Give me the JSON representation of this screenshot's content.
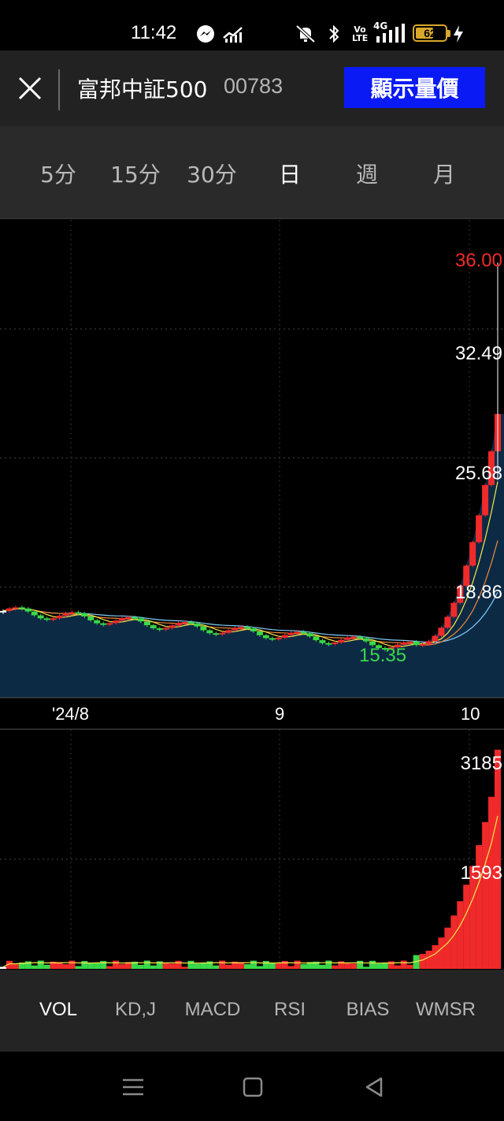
{
  "status": {
    "time": "11:42",
    "battery": "62",
    "battery_level": 0.62,
    "icons": [
      "messenger-icon",
      "signal-chart-icon",
      "mute-bell-icon",
      "bluetooth-icon",
      "volte-icon",
      "4g-signal-icon",
      "charging-icon"
    ],
    "network": "4G",
    "volte": "Vo LTE"
  },
  "header": {
    "close_icon": "close-icon",
    "fund_name": "富邦中証500",
    "fund_code": "00783",
    "show_button": "顯示量價",
    "button_color": "#0a1af5"
  },
  "periods": [
    {
      "label": "5分",
      "active": false
    },
    {
      "label": "15分",
      "active": false
    },
    {
      "label": "30分",
      "active": false
    },
    {
      "label": "日",
      "active": true
    },
    {
      "label": "週",
      "active": false
    },
    {
      "label": "月",
      "active": false
    }
  ],
  "price_axis": {
    "high_marker": "36.00",
    "levels": [
      "32.49",
      "25.68",
      "18.86"
    ],
    "low_marker": "15.35"
  },
  "date_axis": [
    "'24/8",
    "9",
    "10"
  ],
  "volume_axis": [
    "3185",
    "1593"
  ],
  "indicator_tabs": [
    {
      "label": "VOL",
      "active": true
    },
    {
      "label": "KD,J",
      "active": false
    },
    {
      "label": "MACD",
      "active": false
    },
    {
      "label": "RSI",
      "active": false
    },
    {
      "label": "BIAS",
      "active": false
    },
    {
      "label": "WMSR",
      "active": false
    }
  ],
  "nav": [
    "menu-icon",
    "home-square-icon",
    "back-triangle-icon"
  ],
  "colors": {
    "up": "#f02a2a",
    "down": "#39d94a",
    "flat": "#ffffff",
    "area": "#0d2a45",
    "ma5": "#f5e94a",
    "ma10": "#f08a3a",
    "ma20": "#7fd0ff"
  },
  "chart_data": [
    {
      "type": "candlestick",
      "title": "",
      "ylim": [
        15.35,
        36.0
      ],
      "y_ticks": [
        18.86,
        25.68,
        32.49
      ],
      "x_ticks": [
        "'24/8",
        "9",
        "10"
      ],
      "max": 36.0,
      "min": 15.35,
      "last_close": 27.9,
      "last_open": 27.9,
      "last_high": 36.0,
      "last_low": 24.5,
      "series_type": "daily candles with area fill and moving averages"
    },
    {
      "type": "bar",
      "title": "VOL",
      "y_ticks": [
        1593,
        3185
      ],
      "max": 3185,
      "note_values": "daily volume bars, rising sharply at the end"
    }
  ]
}
